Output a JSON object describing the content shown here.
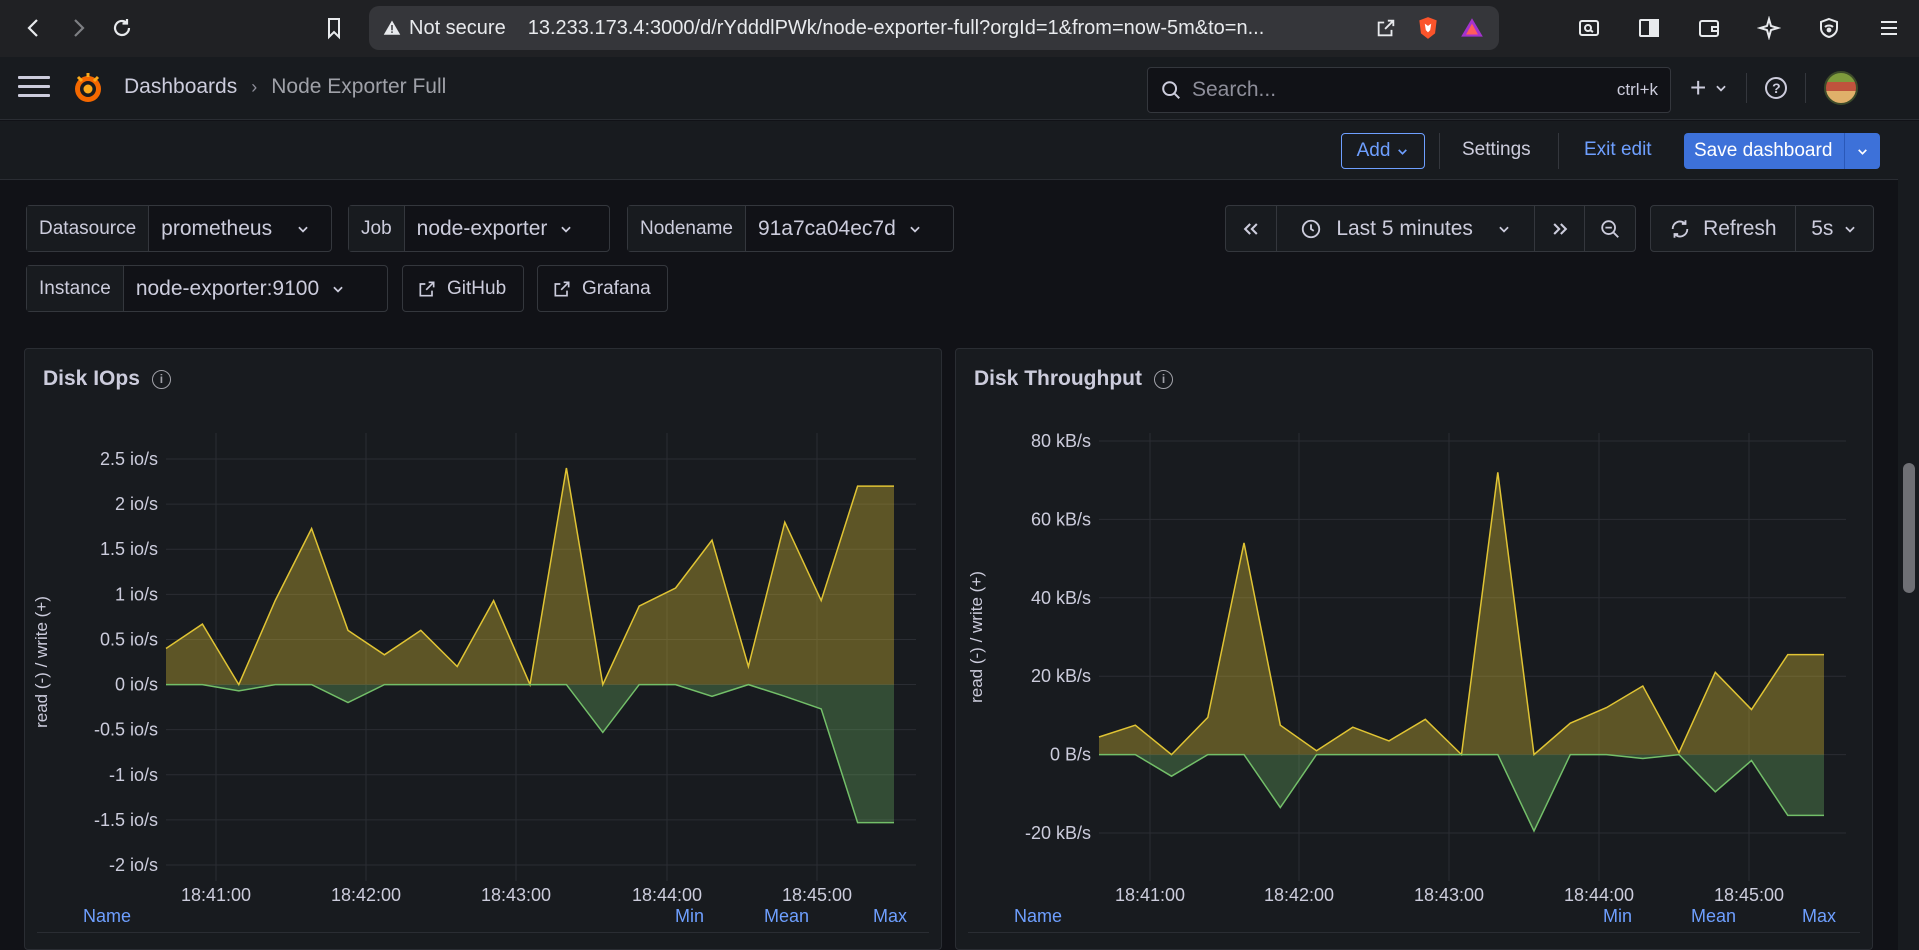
{
  "browser": {
    "security": "Not secure",
    "url": "13.233.173.4:3000/d/rYdddlPWk/node-exporter-full?orgId=1&from=now-5m&to=n..."
  },
  "topbar": {
    "breadcrumb_root": "Dashboards",
    "breadcrumb_current": "Node Exporter Full",
    "search_placeholder": "Search...",
    "search_shortcut": "ctrl+k"
  },
  "edit_bar": {
    "add": "Add",
    "settings": "Settings",
    "exit_edit": "Exit edit",
    "save": "Save dashboard"
  },
  "variables": {
    "datasource_label": "Datasource",
    "datasource_value": "prometheus",
    "job_label": "Job",
    "job_value": "node-exporter",
    "nodename_label": "Nodename",
    "nodename_value": "91a7ca04ec7d",
    "instance_label": "Instance",
    "instance_value": "node-exporter:9100",
    "github": "GitHub",
    "grafana": "Grafana"
  },
  "time_picker": {
    "range": "Last 5 minutes",
    "refresh": "Refresh",
    "interval": "5s"
  },
  "colors": {
    "write": "#e0c434",
    "read": "#73bf69",
    "accent": "#6e9fff"
  },
  "panels": [
    {
      "title": "Disk IOps",
      "legend": {
        "name": "Name",
        "min": "Min",
        "mean": "Mean",
        "max": "Max"
      },
      "chart_data": {
        "type": "area",
        "ylabel": "read (-) / write (+)",
        "y_ticks": [
          "2.5 io/s",
          "2 io/s",
          "1.5 io/s",
          "1 io/s",
          "0.5 io/s",
          "0 io/s",
          "-0.5 io/s",
          "-1 io/s",
          "-1.5 io/s",
          "-2 io/s"
        ],
        "x_ticks": [
          "18:41:00",
          "18:42:00",
          "18:43:00",
          "18:44:00",
          "18:45:00"
        ],
        "ylim": [
          -2,
          2.5
        ],
        "series": [
          {
            "name": "write",
            "values": [
              0.4,
              0.67,
              0,
              0.93,
              1.73,
              0.6,
              0.33,
              0.6,
              0.2,
              0.93,
              0,
              2.4,
              0,
              0.87,
              1.07,
              1.6,
              0.2,
              1.8,
              0.93,
              2.2,
              2.2
            ]
          },
          {
            "name": "read",
            "values": [
              0,
              0,
              -0.07,
              0,
              0,
              -0.2,
              0,
              0,
              0,
              0,
              0,
              0,
              -0.53,
              0,
              0,
              -0.13,
              0,
              -0.13,
              -0.27,
              -1.53,
              -1.53
            ]
          }
        ]
      }
    },
    {
      "title": "Disk Throughput",
      "legend": {
        "name": "Name",
        "min": "Min",
        "mean": "Mean",
        "max": "Max"
      },
      "chart_data": {
        "type": "area",
        "ylabel": "read (-) / write (+)",
        "y_ticks": [
          "80 kB/s",
          "60 kB/s",
          "40 kB/s",
          "20 kB/s",
          "0 B/s",
          "-20 kB/s"
        ],
        "x_ticks": [
          "18:41:00",
          "18:42:00",
          "18:43:00",
          "18:44:00",
          "18:45:00"
        ],
        "ylim": [
          -24,
          82
        ],
        "series": [
          {
            "name": "write",
            "values": [
              4.5,
              7.5,
              0,
              9.5,
              54,
              7.5,
              1,
              7,
              3.5,
              9,
              0,
              72,
              0,
              8,
              12,
              17.5,
              0.5,
              21,
              11.5,
              25.5,
              25.5
            ]
          },
          {
            "name": "read",
            "values": [
              0,
              0,
              -5.5,
              0,
              0,
              -13.5,
              0,
              0,
              0,
              0,
              0,
              0,
              -19.5,
              0,
              0,
              -1,
              0,
              -9.5,
              -1.5,
              -15.5,
              -15.5
            ]
          }
        ]
      }
    }
  ]
}
